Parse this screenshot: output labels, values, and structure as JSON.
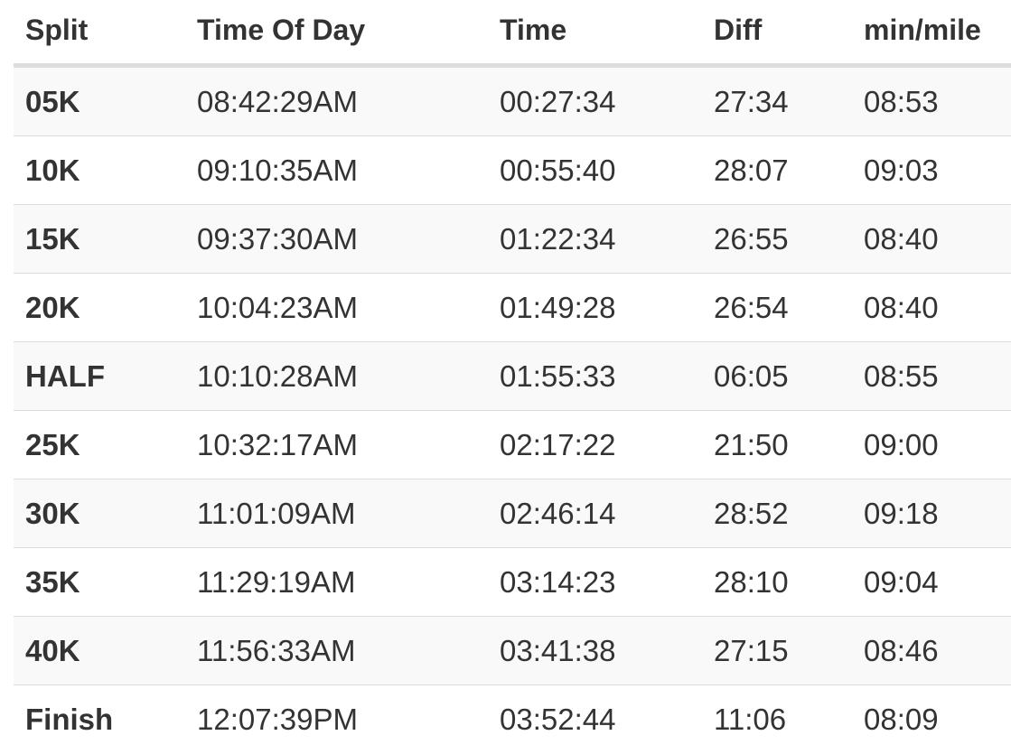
{
  "table": {
    "headers": {
      "split": "Split",
      "time_of_day": "Time Of Day",
      "time": "Time",
      "diff": "Diff",
      "pace": "min/mile"
    },
    "rows": [
      {
        "split": "05K",
        "time_of_day": "08:42:29AM",
        "time": "00:27:34",
        "diff": "27:34",
        "pace": "08:53"
      },
      {
        "split": "10K",
        "time_of_day": "09:10:35AM",
        "time": "00:55:40",
        "diff": "28:07",
        "pace": "09:03"
      },
      {
        "split": "15K",
        "time_of_day": "09:37:30AM",
        "time": "01:22:34",
        "diff": "26:55",
        "pace": "08:40"
      },
      {
        "split": "20K",
        "time_of_day": "10:04:23AM",
        "time": "01:49:28",
        "diff": "26:54",
        "pace": "08:40"
      },
      {
        "split": "HALF",
        "time_of_day": "10:10:28AM",
        "time": "01:55:33",
        "diff": "06:05",
        "pace": "08:55"
      },
      {
        "split": "25K",
        "time_of_day": "10:32:17AM",
        "time": "02:17:22",
        "diff": "21:50",
        "pace": "09:00"
      },
      {
        "split": "30K",
        "time_of_day": "11:01:09AM",
        "time": "02:46:14",
        "diff": "28:52",
        "pace": "09:18"
      },
      {
        "split": "35K",
        "time_of_day": "11:29:19AM",
        "time": "03:14:23",
        "diff": "28:10",
        "pace": "09:04"
      },
      {
        "split": "40K",
        "time_of_day": "11:56:33AM",
        "time": "03:41:38",
        "diff": "27:15",
        "pace": "08:46"
      },
      {
        "split": "Finish",
        "time_of_day": "12:07:39PM",
        "time": "03:52:44",
        "diff": "11:06",
        "pace": "08:09"
      }
    ]
  },
  "colors": {
    "text": "#333333",
    "stripe": "#f9f9f9",
    "border": "#dddddd"
  }
}
